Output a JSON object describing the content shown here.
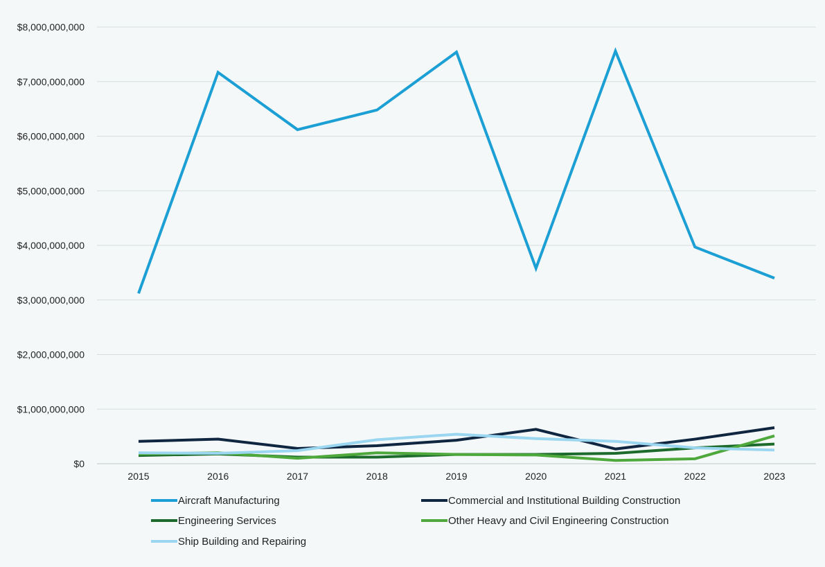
{
  "chart_data": {
    "type": "line",
    "title": "",
    "xlabel": "",
    "ylabel": "",
    "x": [
      "2015",
      "2016",
      "2017",
      "2018",
      "2019",
      "2020",
      "2021",
      "2022",
      "2023"
    ],
    "ylim": [
      0,
      8000000000
    ],
    "yticks": [
      0,
      1000000000,
      2000000000,
      3000000000,
      4000000000,
      5000000000,
      6000000000,
      7000000000,
      8000000000
    ],
    "ytick_labels": [
      "$0",
      "$1,000,000,000",
      "$2,000,000,000",
      "$3,000,000,000",
      "$4,000,000,000",
      "$5,000,000,000",
      "$6,000,000,000",
      "$7,000,000,000",
      "$8,000,000,000"
    ],
    "grid": "horizontal",
    "legend_position": "bottom",
    "series": [
      {
        "name": "Aircraft Manufacturing",
        "color": "#1b9fd4",
        "values": [
          3120000000,
          7170000000,
          6120000000,
          6480000000,
          7540000000,
          3580000000,
          7560000000,
          3970000000,
          3400000000
        ]
      },
      {
        "name": "Commercial and Institutional Building Construction",
        "color": "#0f2540",
        "values": [
          410000000,
          450000000,
          280000000,
          330000000,
          430000000,
          630000000,
          270000000,
          450000000,
          660000000
        ]
      },
      {
        "name": "Engineering Services",
        "color": "#1d6b2c",
        "values": [
          150000000,
          180000000,
          120000000,
          120000000,
          170000000,
          170000000,
          190000000,
          290000000,
          360000000
        ]
      },
      {
        "name": "Other Heavy and Civil Engineering Construction",
        "color": "#4ea83c",
        "values": [
          180000000,
          200000000,
          100000000,
          200000000,
          170000000,
          160000000,
          60000000,
          90000000,
          510000000
        ]
      },
      {
        "name": "Ship Building and Repairing",
        "color": "#9ad6ef",
        "values": [
          200000000,
          190000000,
          240000000,
          440000000,
          540000000,
          460000000,
          410000000,
          290000000,
          250000000
        ]
      }
    ]
  }
}
